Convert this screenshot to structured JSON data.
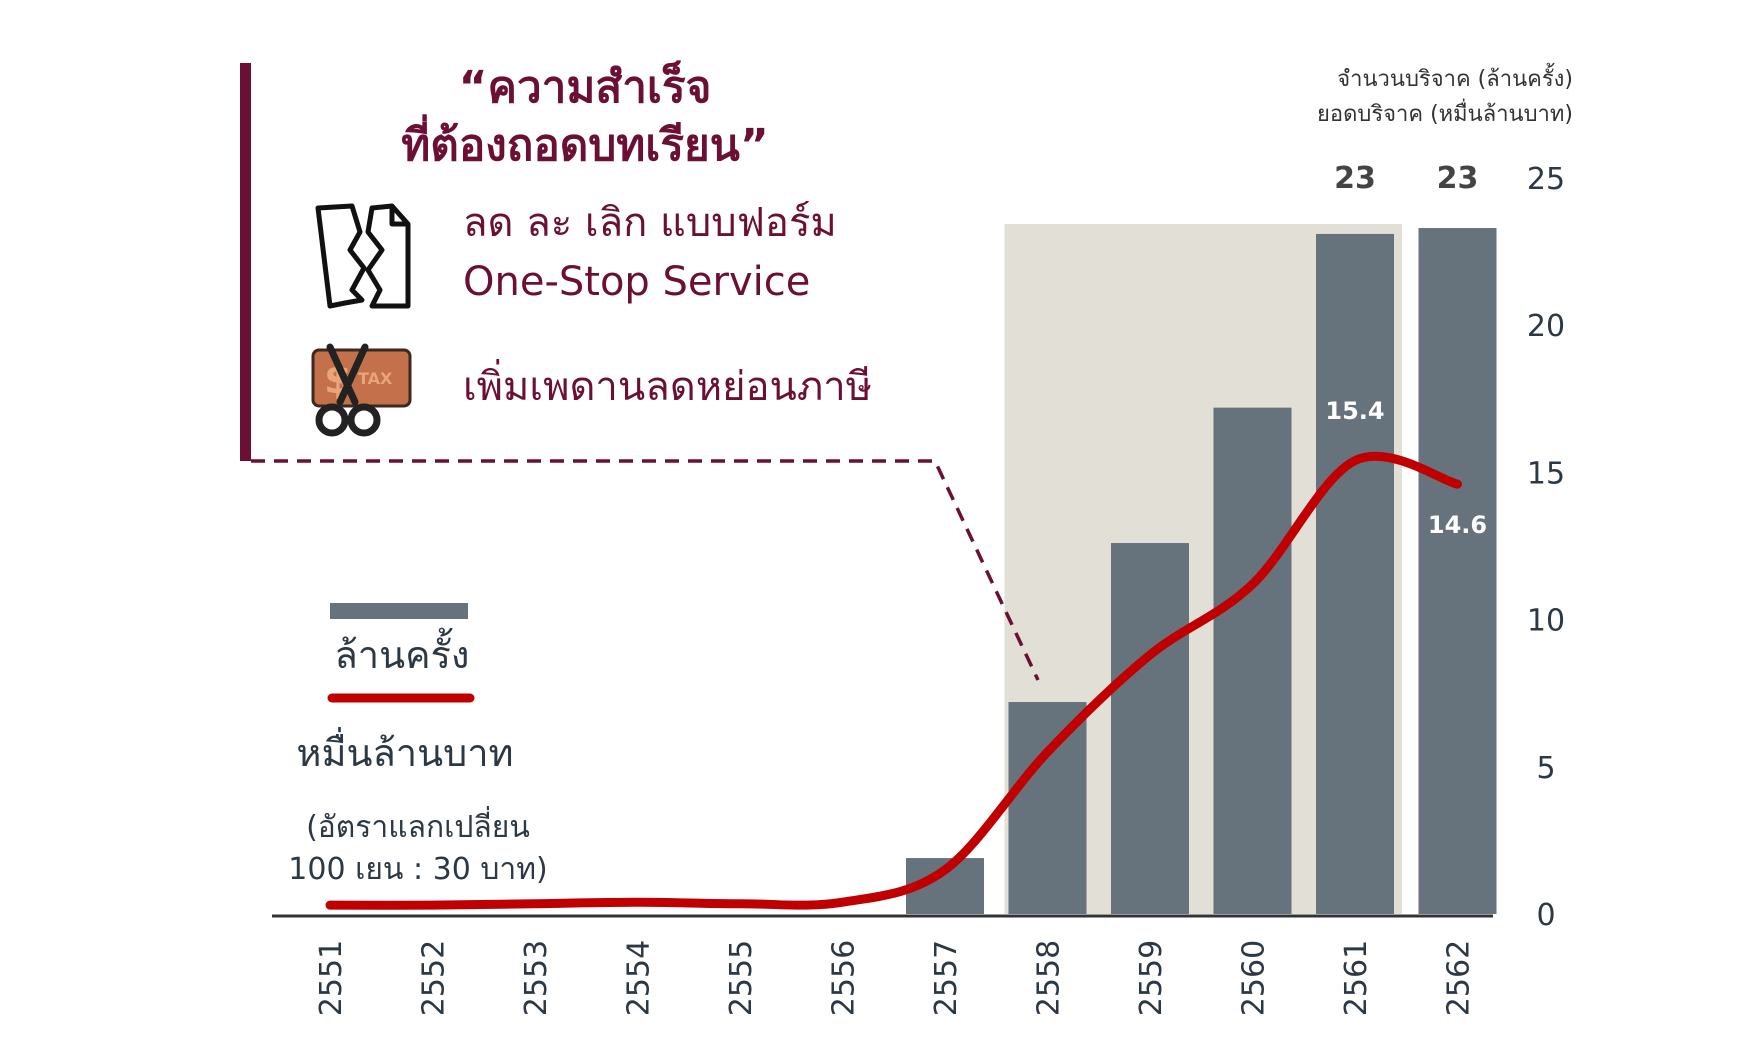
{
  "callout": {
    "title_line1": "“ความสำเร็จ",
    "title_line2": "ที่ต้องถอดบทเรียน”",
    "item1_line1": "ลด ละ เลิก แบบฟอร์ม",
    "item1_line2": "One-Stop Service",
    "item2": "เพิ่มเพดานลดหย่อนภาษี",
    "icon1": "torn-document-icon",
    "icon2": "tax-card-scissors-icon"
  },
  "legend": {
    "bar_label": "ล้านครั้ง",
    "line_label": "หมื่นล้านบาท",
    "note_line1": "(อัตราแลกเปลี่ยน",
    "note_line2": "100 เยน : 30 บาท)"
  },
  "axis_titles": {
    "line1": "จำนวนบริจาค (ล้านครั้ง)",
    "line2": "ยอดบริจาค (หมื่นล้านบาท)"
  },
  "colors": {
    "title": "#6b0f35",
    "accent_bar": "#6b0f35",
    "bar": "#66727c",
    "line": "#c00000",
    "highlight": "#e2dfd6",
    "axis_text": "#2c3844"
  },
  "chart_data": {
    "type": "bar",
    "categories": [
      "2551",
      "2552",
      "2553",
      "2554",
      "2555",
      "2556",
      "2557",
      "2558",
      "2559",
      "2560",
      "2561",
      "2562"
    ],
    "ylim": [
      0,
      25
    ],
    "yticks": [
      "0",
      "5",
      "10",
      "15",
      "20",
      "25"
    ],
    "series": [
      {
        "name": "ล้านครั้ง",
        "type": "bar",
        "values": [
          0,
          0,
          0,
          0,
          0,
          0,
          1.9,
          7.2,
          12.6,
          17.2,
          23.1,
          23.3
        ]
      },
      {
        "name": "หมื่นล้านบาท",
        "type": "line",
        "values": [
          0.3,
          0.3,
          0.35,
          0.4,
          0.35,
          0.4,
          1.5,
          5.5,
          8.8,
          11.2,
          15.4,
          14.6
        ]
      }
    ],
    "bar_top_labels": {
      "10": "23",
      "11": "23"
    },
    "line_labels": {
      "10": "15.4",
      "11": "14.6"
    },
    "highlight_range": [
      "2558",
      "2561"
    ]
  }
}
